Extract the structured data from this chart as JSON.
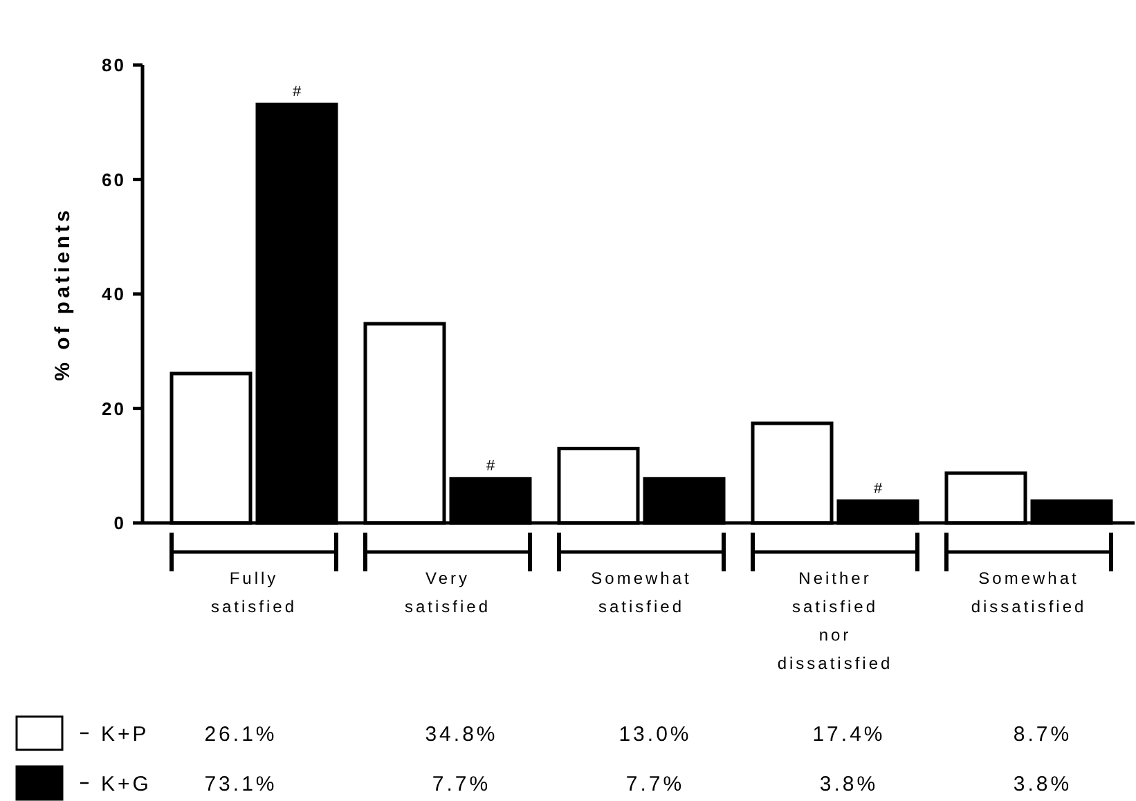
{
  "chart_data": {
    "type": "bar",
    "ylabel": "% of patients",
    "categories": [
      "Fully satisfied",
      "Very satisfied",
      "Somewhat satisfied",
      "Neither satisfied nor dissatisfied",
      "Somewhat dissatisfied"
    ],
    "series": [
      {
        "name": "K+P",
        "color": "#ffffff",
        "values": [
          26.1,
          34.8,
          13.0,
          17.4,
          8.7
        ],
        "value_labels": [
          "26.1%",
          "34.8%",
          "13.0%",
          "17.4%",
          "8.7%"
        ]
      },
      {
        "name": "K+G",
        "color": "#000000",
        "values": [
          73.1,
          7.7,
          7.7,
          3.8,
          3.8
        ],
        "value_labels": [
          "73.1%",
          "7.7%",
          "7.7%",
          "3.8%",
          "3.8%"
        ]
      }
    ],
    "ylim": [
      0,
      80
    ],
    "yticks": [
      0,
      20,
      40,
      60,
      80
    ],
    "grid": false,
    "legend": "bottom left",
    "annotations": [
      {
        "text": "#",
        "x": "Fully satisfied",
        "y": 73.1
      },
      {
        "text": "#",
        "x": "Very satisfied",
        "y": 7.7
      },
      {
        "text": "#",
        "x": "Neither satisfied nor dissatisfied",
        "y": 3.8
      }
    ]
  }
}
